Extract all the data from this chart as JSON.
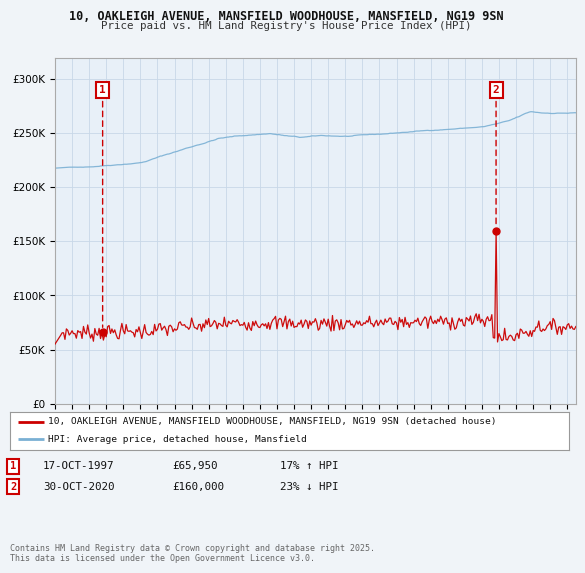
{
  "title_line1": "10, OAKLEIGH AVENUE, MANSFIELD WOODHOUSE, MANSFIELD, NG19 9SN",
  "title_line2": "Price paid vs. HM Land Registry's House Price Index (HPI)",
  "background_color": "#f0f4f8",
  "plot_bg_color": "#e8f0f8",
  "legend_entry1": "10, OAKLEIGH AVENUE, MANSFIELD WOODHOUSE, MANSFIELD, NG19 9SN (detached house)",
  "legend_entry2": "HPI: Average price, detached house, Mansfield",
  "annotation1_date": "17-OCT-1997",
  "annotation1_price": "£65,950",
  "annotation1_hpi": "17% ↑ HPI",
  "annotation2_date": "30-OCT-2020",
  "annotation2_price": "£160,000",
  "annotation2_hpi": "23% ↓ HPI",
  "footer": "Contains HM Land Registry data © Crown copyright and database right 2025.\nThis data is licensed under the Open Government Licence v3.0.",
  "ylim": [
    0,
    320000
  ],
  "yticks": [
    0,
    50000,
    100000,
    150000,
    200000,
    250000,
    300000
  ],
  "marker1_year": 1997.79,
  "marker1_value": 65950,
  "marker2_year": 2020.83,
  "marker2_value": 160000,
  "property_color": "#cc0000",
  "hpi_color": "#7ab0d4",
  "grid_color": "#c8d8e8",
  "xstart": 1995.0,
  "xend": 2025.5
}
